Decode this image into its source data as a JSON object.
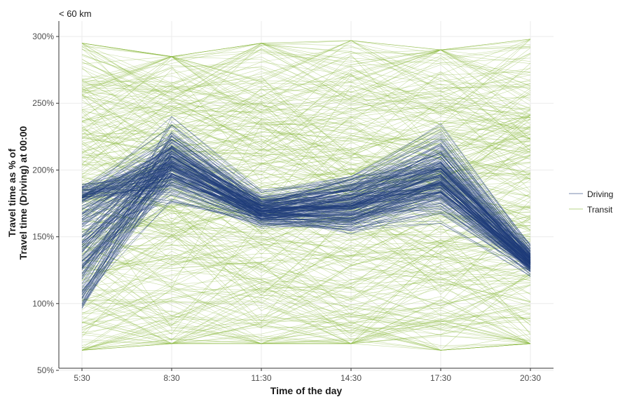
{
  "chart_data": {
    "type": "line",
    "title": "",
    "subtitle": "< 60 km",
    "xlabel": "Time of the day",
    "ylabel_line1": "Travel time as % of",
    "ylabel_line2": "Travel time (Driving) at 00:00",
    "categories": [
      "5:30",
      "8:30",
      "11:30",
      "14:30",
      "17:30",
      "20:30"
    ],
    "y_ticks": [
      50,
      100,
      150,
      200,
      250,
      300
    ],
    "y_tick_labels": [
      "50%",
      "100%",
      "150%",
      "200%",
      "250%",
      "300%"
    ],
    "ylim": [
      50,
      310
    ],
    "grid": true,
    "legend_position": "right",
    "series_groups": [
      {
        "name": "Driving",
        "color": "#1f3d7a",
        "n_lines": 220,
        "mean_values": [
          150,
          205,
          170,
          175,
          195,
          132
        ],
        "typical_range": [
          [
            85,
            190
          ],
          [
            175,
            240
          ],
          [
            155,
            185
          ],
          [
            140,
            195
          ],
          [
            160,
            235
          ],
          [
            120,
            145
          ]
        ]
      },
      {
        "name": "Transit",
        "color": "#8ab83c",
        "n_lines": 320,
        "mean_values": [
          185,
          195,
          190,
          185,
          190,
          180
        ],
        "typical_range": [
          [
            65,
            295
          ],
          [
            70,
            285
          ],
          [
            70,
            295
          ],
          [
            70,
            297
          ],
          [
            65,
            290
          ],
          [
            70,
            298
          ]
        ]
      }
    ]
  }
}
